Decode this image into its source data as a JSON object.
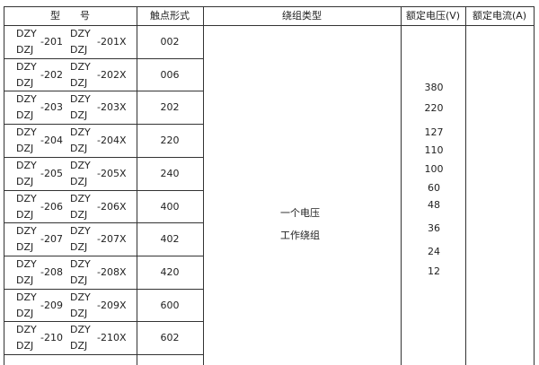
{
  "header": {
    "model": "型　　号",
    "contact": "触点形式",
    "winding": "绕组类型",
    "voltage": "额定电压(V)",
    "current": "额定电流(A)"
  },
  "rows": [
    {
      "a": "DZY",
      "b": "DZJ",
      "n": "-201",
      "c": "DZY",
      "d": "DZJ",
      "x": "-201X",
      "contact": "002"
    },
    {
      "a": "DZY",
      "b": "DZJ",
      "n": "-202",
      "c": "DZY",
      "d": "DZJ",
      "x": "-202X",
      "contact": "006"
    },
    {
      "a": "DZY",
      "b": "DZJ",
      "n": "-203",
      "c": "DZY",
      "d": "DZJ",
      "x": "-203X",
      "contact": "202"
    },
    {
      "a": "DZY",
      "b": "DZJ",
      "n": "-204",
      "c": "DZY",
      "d": "DZJ",
      "x": "-204X",
      "contact": "220"
    },
    {
      "a": "DZY",
      "b": "DZJ",
      "n": "-205",
      "c": "DZY",
      "d": "DZJ",
      "x": "-205X",
      "contact": "240"
    },
    {
      "a": "DZY",
      "b": "DZJ",
      "n": "-206",
      "c": "DZY",
      "d": "DZJ",
      "x": "-206X",
      "contact": "400"
    },
    {
      "a": "DZY",
      "b": "DZJ",
      "n": "-207",
      "c": "DZY",
      "d": "DZJ",
      "x": "-207X",
      "contact": "402"
    },
    {
      "a": "DZY",
      "b": "DZJ",
      "n": "-208",
      "c": "DZY",
      "d": "DZJ",
      "x": "-208X",
      "contact": "420"
    },
    {
      "a": "DZY",
      "b": "DZJ",
      "n": "-209",
      "c": "DZY",
      "d": "DZJ",
      "x": "-209X",
      "contact": "600"
    },
    {
      "a": "DZY",
      "b": "DZJ",
      "n": "-210",
      "c": "DZY",
      "d": "DZJ",
      "x": "-210X",
      "contact": "602"
    }
  ],
  "winding": [
    "一个电压",
    "工作绕组"
  ],
  "voltages": [
    "380",
    "220",
    "127",
    "110",
    "100",
    "60",
    "48",
    "36",
    "24",
    "12"
  ]
}
